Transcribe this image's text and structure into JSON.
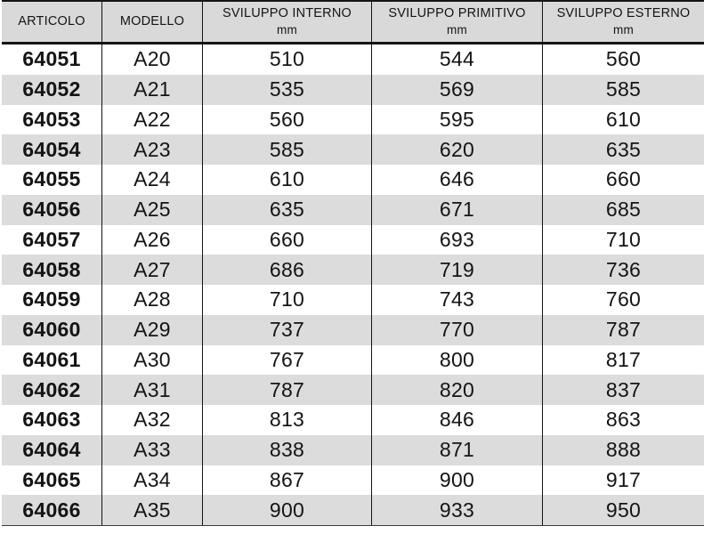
{
  "table": {
    "columns": [
      {
        "key": "articolo",
        "label": "ARTICOLO",
        "unit": ""
      },
      {
        "key": "modello",
        "label": "MODELLO",
        "unit": ""
      },
      {
        "key": "interno",
        "label": "SVILUPPO INTERNO",
        "unit": "mm"
      },
      {
        "key": "primitivo",
        "label": "SVILUPPO PRIMITIVO",
        "unit": "mm"
      },
      {
        "key": "esterno",
        "label": "SVILUPPO ESTERNO",
        "unit": "mm"
      }
    ],
    "rows": [
      {
        "articolo": "64051",
        "modello": "A20",
        "interno": "510",
        "primitivo": "544",
        "esterno": "560"
      },
      {
        "articolo": "64052",
        "modello": "A21",
        "interno": "535",
        "primitivo": "569",
        "esterno": "585"
      },
      {
        "articolo": "64053",
        "modello": "A22",
        "interno": "560",
        "primitivo": "595",
        "esterno": "610"
      },
      {
        "articolo": "64054",
        "modello": "A23",
        "interno": "585",
        "primitivo": "620",
        "esterno": "635"
      },
      {
        "articolo": "64055",
        "modello": "A24",
        "interno": "610",
        "primitivo": "646",
        "esterno": "660"
      },
      {
        "articolo": "64056",
        "modello": "A25",
        "interno": "635",
        "primitivo": "671",
        "esterno": "685"
      },
      {
        "articolo": "64057",
        "modello": "A26",
        "interno": "660",
        "primitivo": "693",
        "esterno": "710"
      },
      {
        "articolo": "64058",
        "modello": "A27",
        "interno": "686",
        "primitivo": "719",
        "esterno": "736"
      },
      {
        "articolo": "64059",
        "modello": "A28",
        "interno": "710",
        "primitivo": "743",
        "esterno": "760"
      },
      {
        "articolo": "64060",
        "modello": "A29",
        "interno": "737",
        "primitivo": "770",
        "esterno": "787"
      },
      {
        "articolo": "64061",
        "modello": "A30",
        "interno": "767",
        "primitivo": "800",
        "esterno": "817"
      },
      {
        "articolo": "64062",
        "modello": "A31",
        "interno": "787",
        "primitivo": "820",
        "esterno": "837"
      },
      {
        "articolo": "64063",
        "modello": "A32",
        "interno": "813",
        "primitivo": "846",
        "esterno": "863"
      },
      {
        "articolo": "64064",
        "modello": "A33",
        "interno": "838",
        "primitivo": "871",
        "esterno": "888"
      },
      {
        "articolo": "64065",
        "modello": "A34",
        "interno": "867",
        "primitivo": "900",
        "esterno": "917"
      },
      {
        "articolo": "64066",
        "modello": "A35",
        "interno": "900",
        "primitivo": "933",
        "esterno": "950"
      }
    ],
    "colors": {
      "header_bg": "#d9d9d9",
      "stripe_bg": "#dcdcdc",
      "rule": "#141414",
      "text": "#141414"
    }
  }
}
